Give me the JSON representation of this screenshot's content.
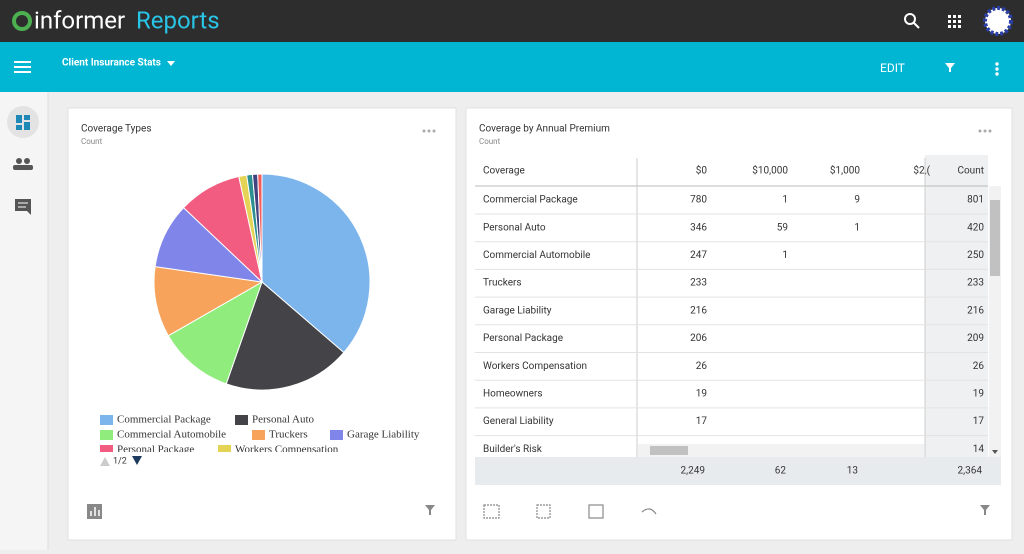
{
  "header": {
    "brand": "informer",
    "product": "Reports"
  },
  "toolbar": {
    "report": "Client Insurance Stats",
    "edit": "EDIT"
  },
  "chart_data": {
    "type": "pie",
    "title": "Coverage Types",
    "subtitle": "Count",
    "categories": [
      "Commercial Package",
      "Personal Auto",
      "Commercial Automobile",
      "Truckers",
      "Garage Liability",
      "Personal Package",
      "Workers Compensation",
      null,
      null,
      null
    ],
    "values": [
      801,
      420,
      250,
      233,
      216,
      209,
      26,
      19,
      17,
      14
    ],
    "colors": [
      "#7cb5ec",
      "#434348",
      "#90ed7d",
      "#f7a35c",
      "#8085e9",
      "#f15c80",
      "#e4d354",
      "#2b908f",
      "#434380",
      "#f45b5b"
    ],
    "legend_page": "1/2"
  },
  "table": {
    "title": "Coverage by Annual Premium",
    "subtitle": "Count",
    "columns": [
      "Coverage",
      "$0",
      "$10,000",
      "$1,000",
      "$2,(",
      "Count"
    ],
    "rows": [
      [
        "Commercial Package",
        "780",
        "1",
        "9",
        null,
        "801"
      ],
      [
        "Personal Auto",
        "346",
        "59",
        "1",
        null,
        "420"
      ],
      [
        "Commercial Automobile",
        "247",
        "1",
        null,
        null,
        "250"
      ],
      [
        "Truckers",
        "233",
        null,
        null,
        null,
        "233"
      ],
      [
        "Garage Liability",
        "216",
        null,
        null,
        null,
        "216"
      ],
      [
        "Personal Package",
        "206",
        null,
        null,
        null,
        "209"
      ],
      [
        "Workers Compensation",
        "26",
        null,
        null,
        null,
        "26"
      ],
      [
        "Homeowners",
        "19",
        null,
        null,
        null,
        "19"
      ],
      [
        "General Liability",
        "17",
        null,
        null,
        null,
        "17"
      ],
      [
        "Builder's Risk",
        null,
        null,
        null,
        null,
        "14"
      ]
    ],
    "totals": [
      null,
      "2,249",
      "62",
      "13",
      null,
      "2,364"
    ]
  }
}
